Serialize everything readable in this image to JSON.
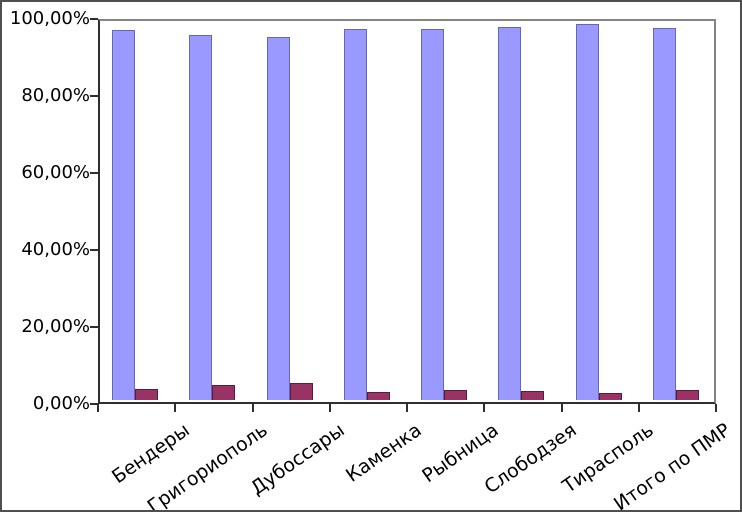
{
  "chart_data": {
    "type": "bar",
    "title": "",
    "categories": [
      "Бендеры",
      "Григориополь",
      "Дубоссары",
      "Каменка",
      "Рыбница",
      "Слободзея",
      "Тирасполь",
      "Итого по ПМР"
    ],
    "series": [
      {
        "name": "series_1",
        "color": "#9999FF",
        "border_color": "#6666B2",
        "values": [
          96.0,
          94.7,
          94.2,
          96.3,
          96.3,
          97.0,
          97.6,
          96.5
        ]
      },
      {
        "name": "series_2",
        "color": "#993366",
        "border_color": "#571D3A",
        "values": [
          2.9,
          3.9,
          4.3,
          2.1,
          2.5,
          2.4,
          1.7,
          2.7
        ]
      }
    ],
    "xlabel": "",
    "ylabel": "",
    "y_axis": {
      "min": 0,
      "max": 100,
      "step": 20,
      "tick_labels": [
        "0,00%",
        "20,00%",
        "40,00%",
        "60,00%",
        "80,00%",
        "100,00%"
      ]
    },
    "grid": false,
    "legend_position": "none",
    "x_label_rotation_deg": -35,
    "plot_border_color": "#848484",
    "axis_color": "#2E2E2E",
    "background_color": "#FFFFFF"
  }
}
